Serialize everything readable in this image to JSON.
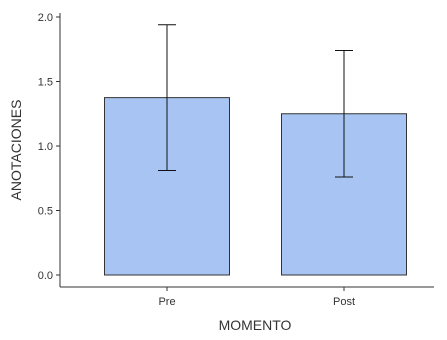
{
  "chart_data": {
    "type": "bar",
    "title": "",
    "xlabel": "MOMENTO",
    "ylabel": "ANOTACIONES",
    "categories": [
      "Pre",
      "Post"
    ],
    "values": [
      1.375,
      1.25
    ],
    "error_lower": [
      0.81,
      0.76
    ],
    "error_upper": [
      1.94,
      1.74
    ],
    "ylim": [
      0,
      2.0
    ],
    "yticks": [
      0.0,
      0.5,
      1.0,
      1.5,
      2.0
    ],
    "ytick_labels": [
      "0.0",
      "0.5",
      "1.0",
      "1.5",
      "2.0"
    ],
    "grid": false,
    "legend": "none",
    "colors": {
      "bar_fill": "#a7c4f2",
      "bar_stroke": "#333333",
      "axis": "#333333",
      "error_bar": "#111111",
      "text": "#333333"
    }
  }
}
